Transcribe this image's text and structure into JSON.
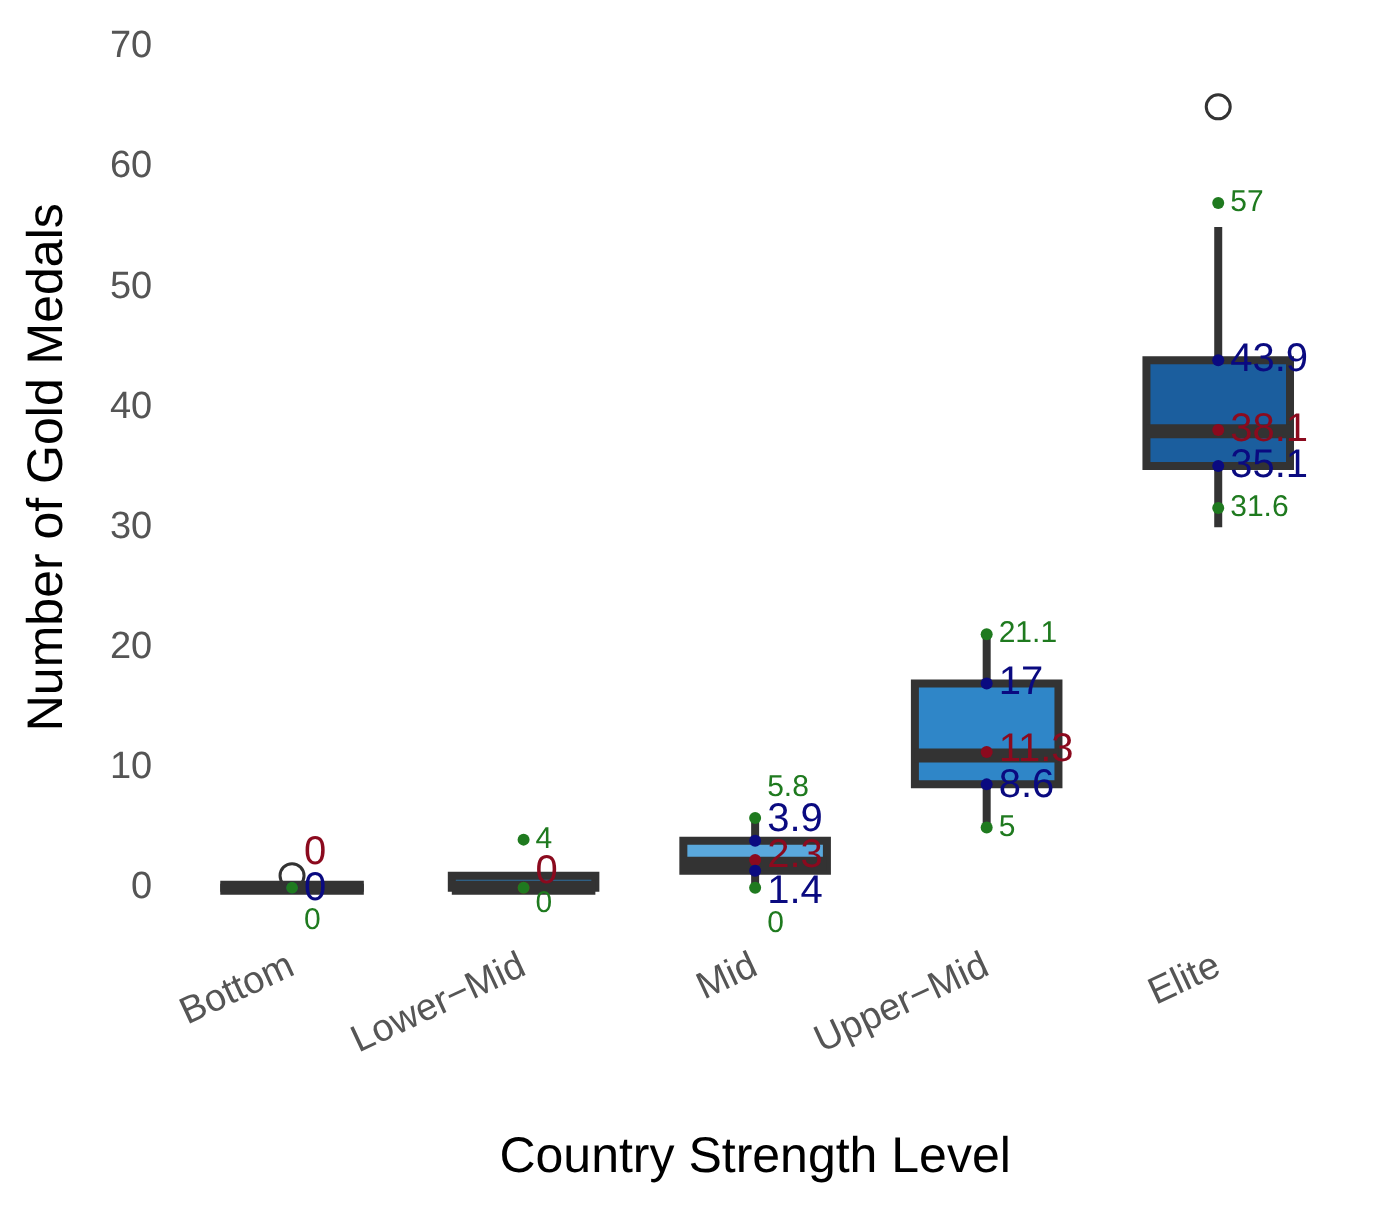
{
  "chart_data": {
    "type": "box",
    "xlabel": "Country Strength Level",
    "ylabel": "Number of Gold Medals",
    "categories": [
      "Bottom",
      "Lower−Mid",
      "Mid",
      "Upper−Mid",
      "Elite"
    ],
    "colors": [
      "#333333",
      "#2f6f9f",
      "#5aa8dc",
      "#2f86c8",
      "#1b5e9e"
    ],
    "boxes": [
      {
        "low": 0,
        "q1": 0,
        "median": 0,
        "q3": 0,
        "high": 0,
        "outliers": [
          1
        ]
      },
      {
        "low": 0,
        "q1": 0,
        "median": 0,
        "q3": 1,
        "high": 1
      },
      {
        "low": 0,
        "q1": 1.4,
        "median": 2,
        "q3": 3.9,
        "high": 5.8
      },
      {
        "low": 5,
        "q1": 8.6,
        "median": 11,
        "q3": 17,
        "high": 21.1
      },
      {
        "low": 30,
        "q1": 35.1,
        "median": 38,
        "q3": 43.9,
        "high": 55,
        "outliers": [
          65
        ]
      }
    ],
    "series": [
      {
        "type": "scatter",
        "marker": "circle",
        "color": "#8b0a1e",
        "x": [
          "Bottom",
          "Lower−Mid",
          "Mid",
          "Upper−Mid",
          "Elite"
        ],
        "values": [
          0,
          0,
          2.3,
          11.3,
          38.1
        ]
      },
      {
        "type": "scatter",
        "marker": "circle",
        "color": "#0a0a80",
        "x": [
          "Bottom",
          "Mid",
          "Upper−Mid",
          "Elite",
          "Mid",
          "Upper−Mid",
          "Elite"
        ],
        "values": [
          0,
          3.9,
          17,
          43.9,
          1.4,
          8.6,
          35.1
        ]
      },
      {
        "type": "scatter",
        "marker": "circle",
        "color": "#1f7a1f",
        "x": [
          "Bottom",
          "Lower−Mid",
          "Lower−Mid",
          "Mid",
          "Mid",
          "Upper−Mid",
          "Upper−Mid",
          "Elite",
          "Elite"
        ],
        "values": [
          0,
          4,
          0,
          5.8,
          0,
          21.1,
          5,
          57,
          31.6
        ]
      }
    ],
    "data_labels": true,
    "ylim": [
      0,
      70
    ],
    "yticks": [
      0,
      10,
      20,
      30,
      40,
      50,
      60,
      70
    ],
    "grid": false
  }
}
